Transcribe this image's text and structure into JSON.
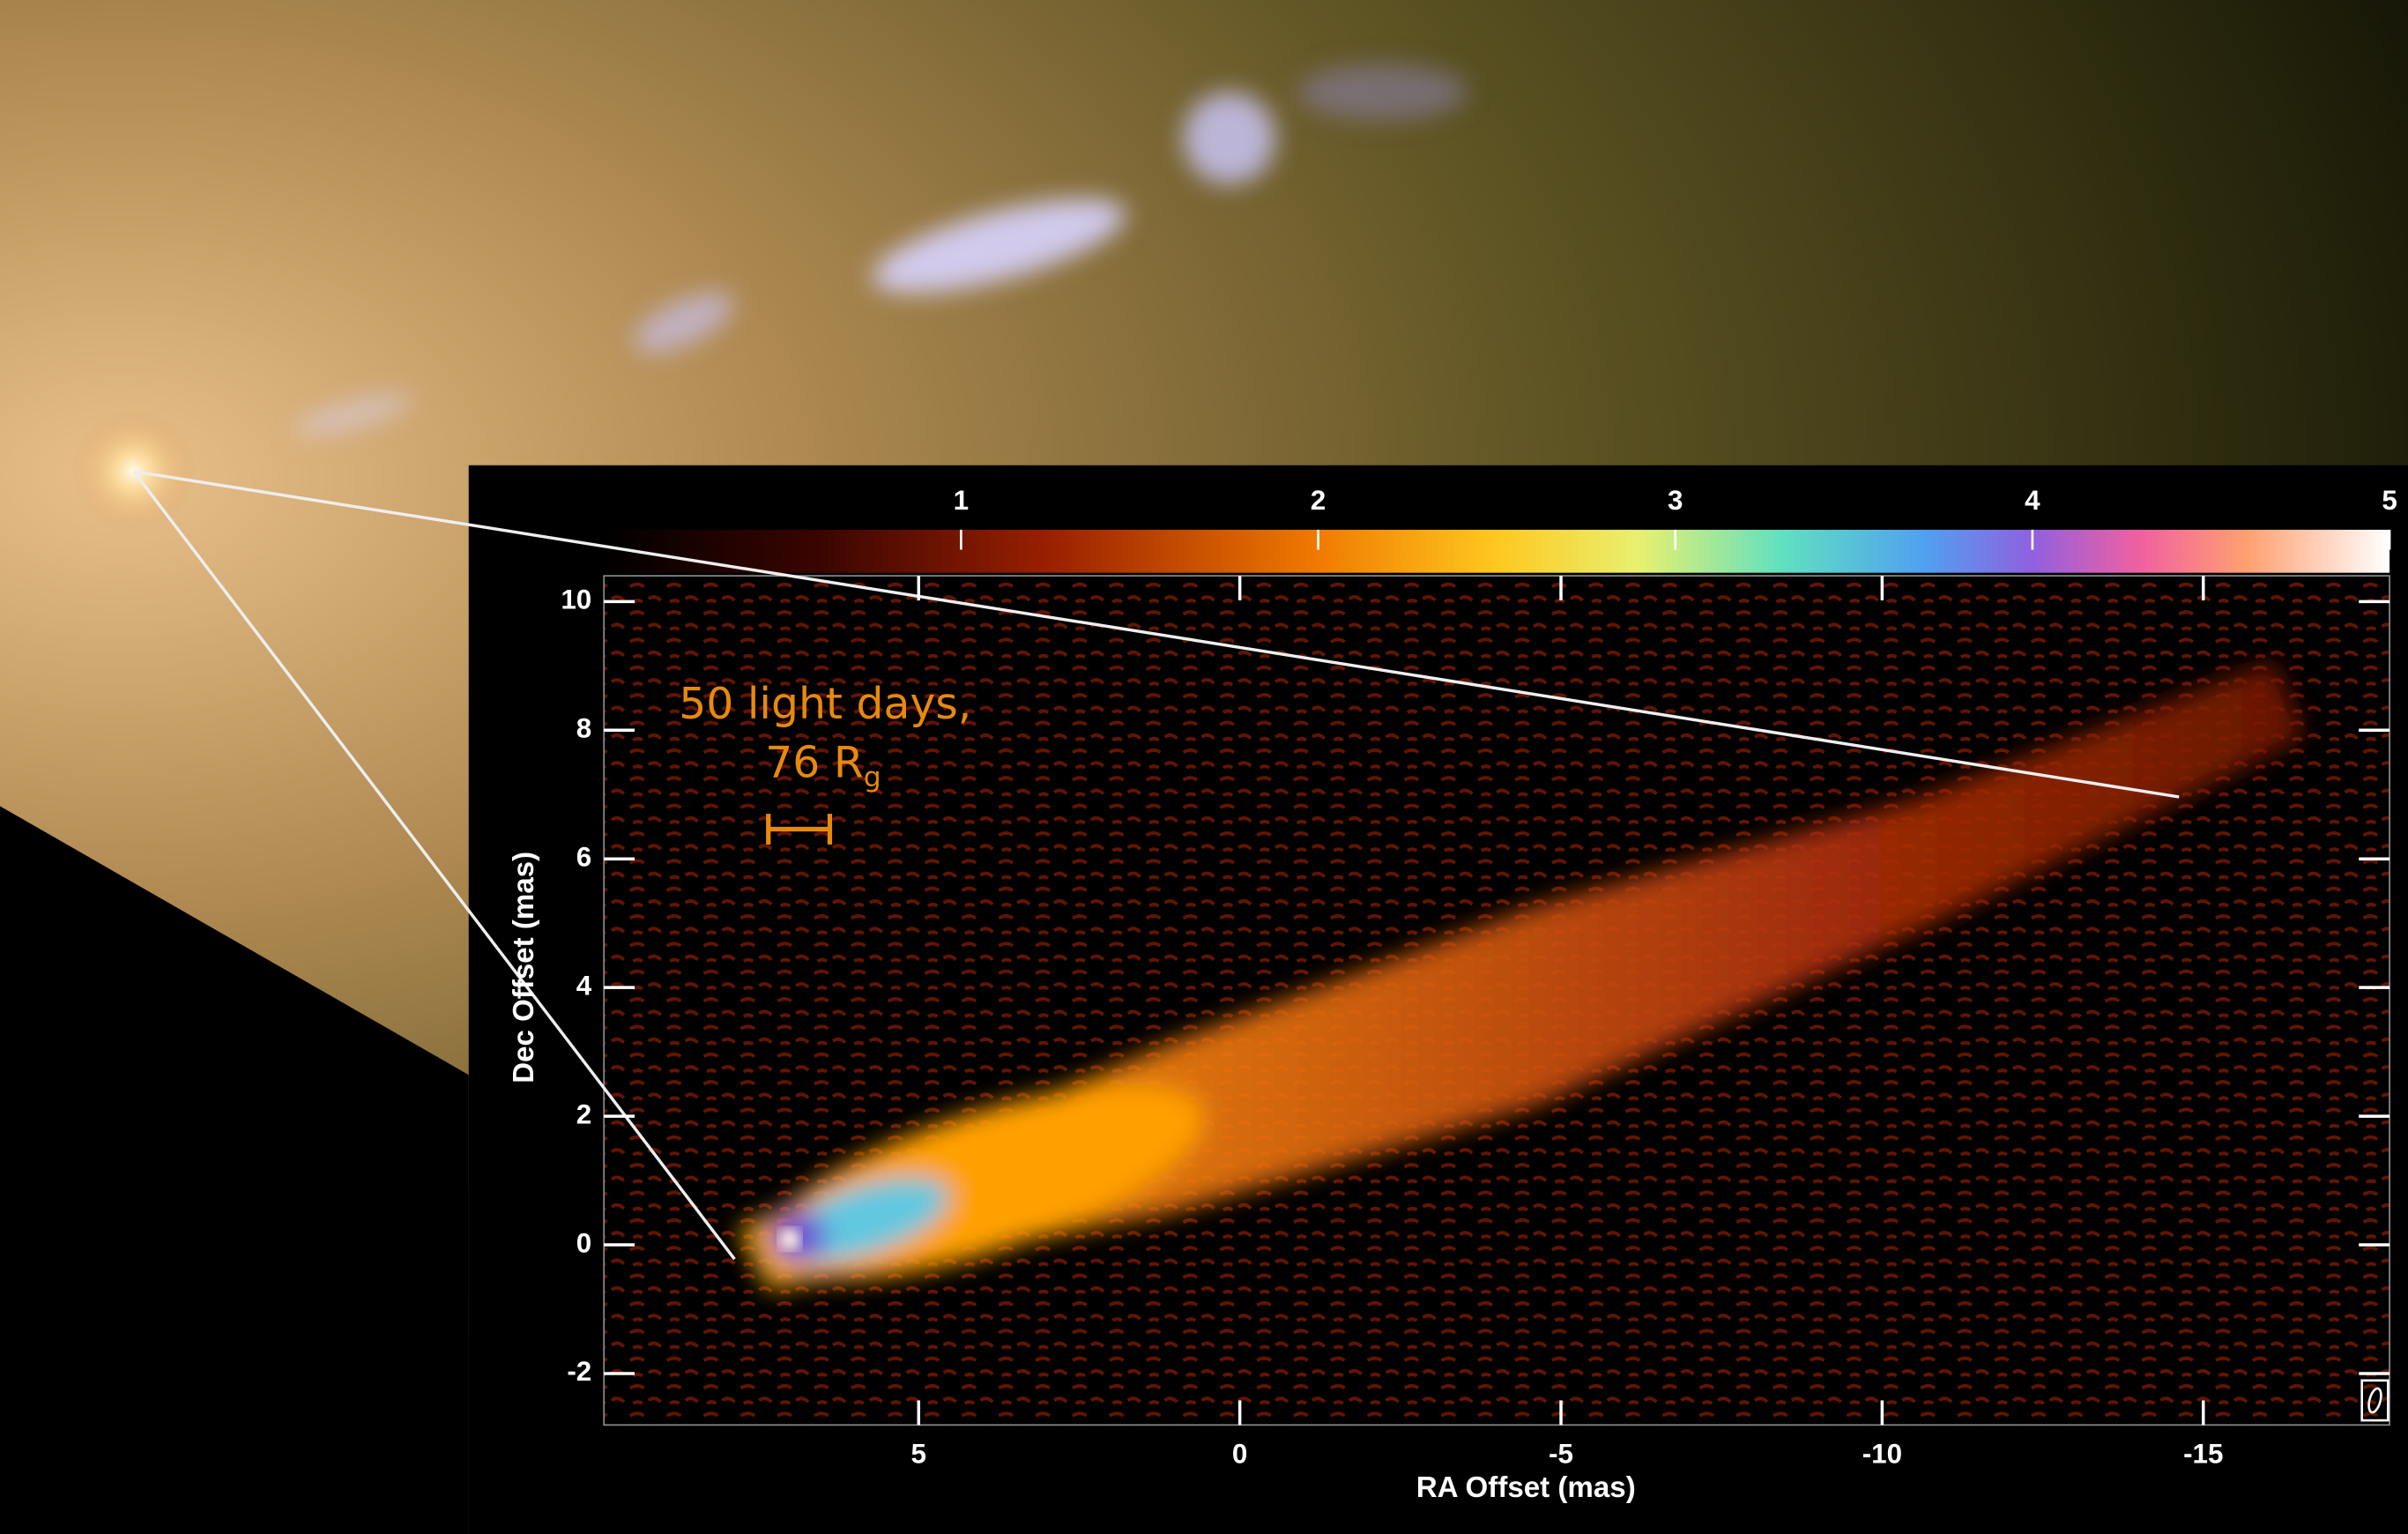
{
  "inset": {
    "colorbar": {
      "lim": [
        0,
        5
      ],
      "ticks": [
        1,
        2,
        3,
        4,
        5
      ]
    },
    "x_axis": {
      "label": "RA Offset (mas)",
      "lim": [
        9.9,
        -17.9
      ],
      "ticks": [
        5,
        0,
        -5,
        -10,
        -15
      ]
    },
    "y_axis": {
      "label": "Dec Offset (mas)",
      "lim": [
        -2.8,
        10.4
      ],
      "ticks": [
        -2,
        0,
        2,
        4,
        6,
        8,
        10
      ]
    },
    "annotation": {
      "line1": "50 light days,",
      "line2": "76 R",
      "subscript": "g"
    }
  }
}
